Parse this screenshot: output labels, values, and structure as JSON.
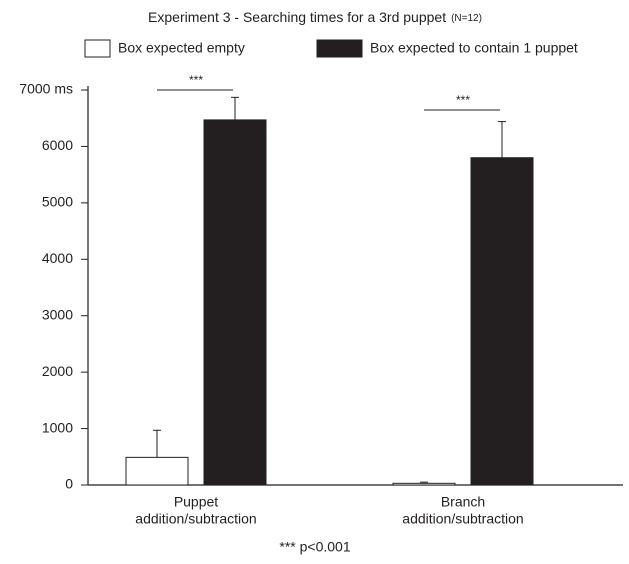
{
  "chart_data": {
    "type": "bar",
    "title": "Experiment 3 - Searching times for a 3rd puppet",
    "title_note": "(N=12)",
    "categories": [
      [
        "Puppet",
        "addition/subtraction"
      ],
      [
        "Branch",
        "addition/subtraction"
      ]
    ],
    "series": [
      {
        "name": "Box expected empty",
        "color": "#ffffff",
        "values": [
          490,
          30
        ],
        "errors": [
          480,
          20
        ]
      },
      {
        "name": "Box expected to contain 1 puppet",
        "color": "#231f20",
        "values": [
          6470,
          5800
        ],
        "errors": [
          400,
          640
        ]
      }
    ],
    "ylim": [
      0,
      7000
    ],
    "yticks": [
      0,
      1000,
      2000,
      3000,
      4000,
      5000,
      6000,
      {
        "value": 7000,
        "label": "7000 ms"
      }
    ],
    "annotations": [
      "***",
      "***"
    ],
    "footnote": "*** p<0.001",
    "legend": "top",
    "grid": false
  }
}
